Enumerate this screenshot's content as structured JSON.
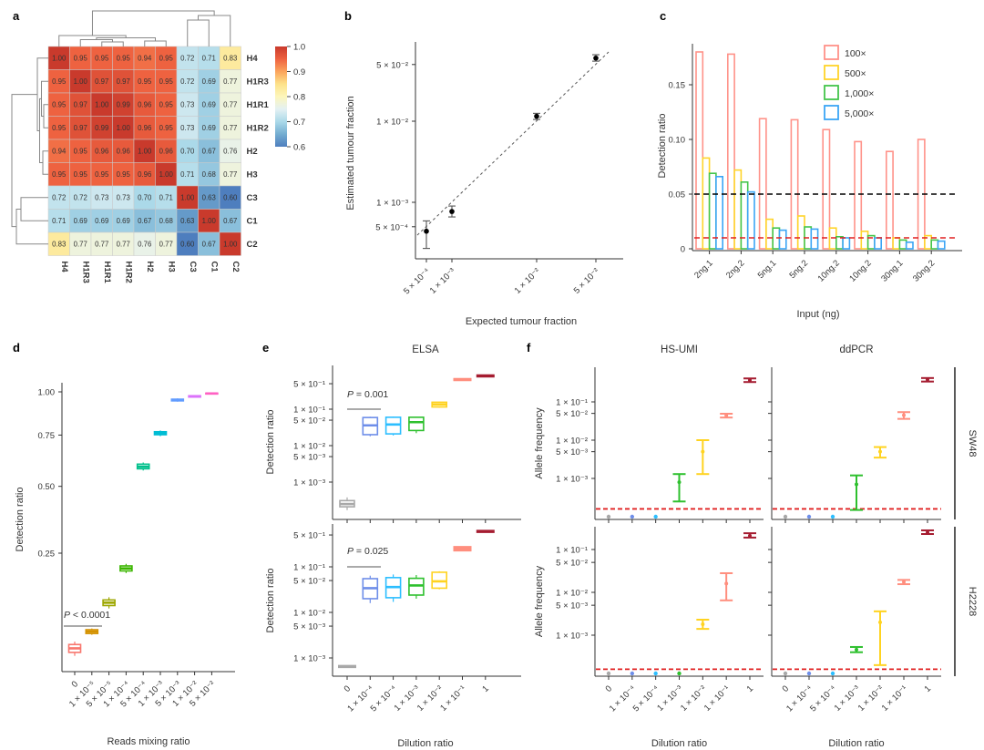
{
  "panels": {
    "a": {
      "label": "a"
    },
    "b": {
      "label": "b"
    },
    "c": {
      "label": "c"
    },
    "d": {
      "label": "d"
    },
    "e": {
      "label": "e"
    },
    "f": {
      "label": "f"
    }
  },
  "chart_data": [
    {
      "id": "a",
      "type": "heatmap",
      "labels": [
        "H4",
        "H1R3",
        "H1R1",
        "H1R2",
        "H2",
        "H3",
        "C3",
        "C1",
        "C2"
      ],
      "matrix": [
        [
          1.0,
          0.95,
          0.95,
          0.95,
          0.94,
          0.95,
          0.72,
          0.71,
          0.83
        ],
        [
          0.95,
          1.0,
          0.97,
          0.97,
          0.95,
          0.95,
          0.72,
          0.69,
          0.77
        ],
        [
          0.95,
          0.97,
          1.0,
          0.99,
          0.96,
          0.95,
          0.73,
          0.69,
          0.77
        ],
        [
          0.95,
          0.97,
          0.99,
          1.0,
          0.96,
          0.95,
          0.73,
          0.69,
          0.77
        ],
        [
          0.94,
          0.95,
          0.96,
          0.96,
          1.0,
          0.96,
          0.7,
          0.67,
          0.76
        ],
        [
          0.95,
          0.95,
          0.95,
          0.95,
          0.96,
          1.0,
          0.71,
          0.68,
          0.77
        ],
        [
          0.72,
          0.72,
          0.73,
          0.73,
          0.7,
          0.71,
          1.0,
          0.63,
          0.6
        ],
        [
          0.71,
          0.69,
          0.69,
          0.69,
          0.67,
          0.68,
          0.63,
          1.0,
          0.67
        ],
        [
          0.83,
          0.77,
          0.77,
          0.77,
          0.76,
          0.77,
          0.6,
          0.67,
          1.0
        ]
      ],
      "vmin": 0.6,
      "vmax": 1.0,
      "colorbar_ticks": [
        "1.0",
        "0.9",
        "0.8",
        "0.7",
        "0.6"
      ],
      "colormap_stops": [
        "#4E7EBE",
        "#74ADD1",
        "#ABD9E9",
        "#E4F1F3",
        "#FDF6BB",
        "#FDE28A",
        "#FBA45C",
        "#EE6240",
        "#C93A2C"
      ]
    },
    {
      "id": "b",
      "type": "scatter",
      "xlabel": "Expected tumour fraction",
      "ylabel": "Estimated tumour fraction",
      "xticks": [
        {
          "v": 0.0005,
          "label": "5 × 10⁻⁴"
        },
        {
          "v": 0.001,
          "label": "1 × 10⁻³"
        },
        {
          "v": 0.01,
          "label": "1 × 10⁻²"
        },
        {
          "v": 0.05,
          "label": "5 × 10⁻²"
        }
      ],
      "yticks": [
        {
          "v": 0.05,
          "label": "5 × 10⁻²"
        },
        {
          "v": 0.01,
          "label": "1 × 10⁻²"
        },
        {
          "v": 0.001,
          "label": "1 × 10⁻³"
        },
        {
          "v": 0.0005,
          "label": "5 × 10⁻⁴"
        }
      ],
      "points": [
        {
          "x": 0.0005,
          "y": 0.00044,
          "lo": 0.00027,
          "hi": 0.00059
        },
        {
          "x": 0.001,
          "y": 0.00077,
          "lo": 0.00066,
          "hi": 0.0009
        },
        {
          "x": 0.01,
          "y": 0.0115,
          "lo": 0.0105,
          "hi": 0.0125
        },
        {
          "x": 0.05,
          "y": 0.06,
          "lo": 0.055,
          "hi": 0.066
        }
      ],
      "identity_line": true,
      "point_color": "#000000"
    },
    {
      "id": "c",
      "type": "bar",
      "xlabel": "Input (ng)",
      "ylabel": "Detection ratio",
      "categories": [
        "2ng.1",
        "2ng.2",
        "5ng.1",
        "5ng.2",
        "10ng.2",
        "10ng.2",
        "30ng.1",
        "30ng.2"
      ],
      "series": [
        {
          "name": "100×",
          "color": "#FF9289",
          "values": [
            0.18,
            0.178,
            0.119,
            0.118,
            0.109,
            0.098,
            0.089,
            0.1
          ]
        },
        {
          "name": "500×",
          "color": "#FFD42A",
          "values": [
            0.083,
            0.072,
            0.027,
            0.03,
            0.019,
            0.016,
            0.01,
            0.012
          ]
        },
        {
          "name": "1,000×",
          "color": "#44C54B",
          "values": [
            0.069,
            0.061,
            0.019,
            0.02,
            0.011,
            0.012,
            0.008,
            0.008
          ]
        },
        {
          "name": "5,000×",
          "color": "#3BA5F5",
          "values": [
            0.066,
            0.052,
            0.017,
            0.018,
            0.01,
            0.01,
            0.006,
            0.007
          ]
        }
      ],
      "yticks": [
        {
          "v": 0,
          "label": "0"
        },
        {
          "v": 0.05,
          "label": "0.05"
        },
        {
          "v": 0.1,
          "label": "0.10"
        },
        {
          "v": 0.15,
          "label": "0.15"
        }
      ],
      "hlines": [
        {
          "y": 0.05,
          "color": "#000000"
        },
        {
          "y": 0.01,
          "color": "#E02020"
        }
      ],
      "ylim": [
        0,
        0.185
      ]
    },
    {
      "id": "d",
      "type": "box",
      "yscale": "sqrt",
      "xlabel": "Reads mixing ratio",
      "ylabel": "Detection ratio",
      "categories": [
        "0",
        "1 × 10⁻⁵",
        "5 × 10⁻⁵",
        "1 × 10⁻⁴",
        "5 × 10⁻⁴",
        "1 × 10⁻³",
        "5 × 10⁻³",
        "1 × 10⁻²",
        "5 × 10⁻²"
      ],
      "colors": [
        "#F8766D",
        "#D49200",
        "#9DA700",
        "#3BB600",
        "#00C08B",
        "#00BDD4",
        "#619CFF",
        "#DB72FB",
        "#FF61C3"
      ],
      "yticks": [
        {
          "v": 0.25,
          "label": "0.25"
        },
        {
          "v": 0.5,
          "label": "0.50"
        },
        {
          "v": 0.75,
          "label": "0.75"
        },
        {
          "v": 1.0,
          "label": "1.00"
        }
      ],
      "boxes": [
        {
          "med": 0.042,
          "q1": 0.037,
          "q3": 0.047,
          "lo": 0.033,
          "hi": 0.051
        },
        {
          "med": 0.066,
          "q1": 0.063,
          "q3": 0.069,
          "lo": 0.061,
          "hi": 0.071
        },
        {
          "med": 0.12,
          "q1": 0.114,
          "q3": 0.126,
          "lo": 0.108,
          "hi": 0.132
        },
        {
          "med": 0.205,
          "q1": 0.198,
          "q3": 0.212,
          "lo": 0.192,
          "hi": 0.218
        },
        {
          "med": 0.59,
          "q1": 0.58,
          "q3": 0.602,
          "lo": 0.572,
          "hi": 0.61
        },
        {
          "med": 0.76,
          "q1": 0.752,
          "q3": 0.768,
          "lo": 0.744,
          "hi": 0.775
        },
        {
          "med": 0.95,
          "q1": 0.945,
          "q3": 0.955,
          "lo": 0.94,
          "hi": 0.96
        },
        {
          "med": 0.972,
          "q1": 0.968,
          "q3": 0.976,
          "lo": 0.965,
          "hi": 0.979
        },
        {
          "med": 0.99,
          "q1": 0.987,
          "q3": 0.992,
          "lo": 0.985,
          "hi": 0.994
        }
      ],
      "annotation": "P < 0.0001"
    },
    {
      "id": "e",
      "type": "box",
      "yscale": "log",
      "title": "ELSA",
      "xlabel": "Dilution ratio",
      "ylabel": "Detection ratio",
      "categories": [
        "0",
        "1 × 10⁻⁴",
        "5 × 10⁻⁴",
        "1 × 10⁻³",
        "1 × 10⁻²",
        "1 × 10⁻¹",
        "1"
      ],
      "colors": [
        "#A8A8A8",
        "#6E8EE9",
        "#2CBEFF",
        "#2EC02E",
        "#FFD320",
        "#FF8E7E",
        "#A51C30"
      ],
      "yticks": [
        {
          "v": 0.5,
          "label": "5 × 10⁻¹"
        },
        {
          "v": 0.1,
          "label": "1 × 10⁻¹"
        },
        {
          "v": 0.05,
          "label": "5 × 10⁻²"
        },
        {
          "v": 0.01,
          "label": "1 × 10⁻²"
        },
        {
          "v": 0.005,
          "label": "5 × 10⁻³"
        },
        {
          "v": 0.001,
          "label": "1 × 10⁻³"
        }
      ],
      "subplots": [
        {
          "annotation": "P = 0.001",
          "boxes": [
            {
              "med": 0.00025,
              "q1": 0.00021,
              "q3": 0.00031,
              "lo": 0.00017,
              "hi": 0.00038
            },
            {
              "med": 0.036,
              "q1": 0.02,
              "q3": 0.059,
              "lo": 0.018,
              "hi": 0.062
            },
            {
              "med": 0.038,
              "q1": 0.021,
              "q3": 0.06,
              "lo": 0.019,
              "hi": 0.063
            },
            {
              "med": 0.044,
              "q1": 0.026,
              "q3": 0.06,
              "lo": 0.022,
              "hi": 0.062
            },
            {
              "med": 0.135,
              "q1": 0.115,
              "q3": 0.155,
              "lo": 0.11,
              "hi": 0.16
            },
            {
              "med": 0.65,
              "line": true
            },
            {
              "med": 0.82,
              "line": true
            }
          ]
        },
        {
          "annotation": "P = 0.025",
          "boxes": [
            {
              "med": 0.00065,
              "line": true
            },
            {
              "med": 0.034,
              "q1": 0.02,
              "q3": 0.055,
              "lo": 0.016,
              "hi": 0.064
            },
            {
              "med": 0.036,
              "q1": 0.021,
              "q3": 0.058,
              "lo": 0.017,
              "hi": 0.068
            },
            {
              "med": 0.039,
              "q1": 0.024,
              "q3": 0.056,
              "lo": 0.02,
              "hi": 0.066
            },
            {
              "med": 0.048,
              "q1": 0.034,
              "q3": 0.076,
              "lo": 0.032,
              "hi": 0.08
            },
            {
              "med": 0.25,
              "line": true,
              "thick": true
            },
            {
              "med": 0.6,
              "line": true
            }
          ]
        }
      ]
    },
    {
      "id": "f",
      "type": "errorbar-grid",
      "col_titles": [
        "HS-UMI",
        "ddPCR"
      ],
      "row_titles": [
        "SW48",
        "H2228"
      ],
      "xlabel": "Dilution ratio",
      "ylabel": "Allele frequency",
      "categories": [
        "0",
        "1 × 10⁻⁴",
        "5 × 10⁻⁴",
        "1 × 10⁻³",
        "1 × 10⁻²",
        "1 × 10⁻¹",
        "1"
      ],
      "colors": [
        "#A8A8A8",
        "#6E8EE9",
        "#2CBEFF",
        "#2EC02E",
        "#FFD320",
        "#FF8E7E",
        "#A51C30"
      ],
      "yticks": [
        {
          "v": 0.1,
          "label": "1 × 10⁻¹"
        },
        {
          "v": 0.05,
          "label": "5 × 10⁻²"
        },
        {
          "v": 0.01,
          "label": "1 × 10⁻²"
        },
        {
          "v": 0.005,
          "label": "5 × 10⁻³"
        },
        {
          "v": 0.001,
          "label": "1 × 10⁻³"
        }
      ],
      "threshold": {
        "v": 0.00016,
        "color": "#E02020"
      },
      "subplots": [
        {
          "row": "SW48",
          "col": "HS-UMI",
          "points": [
            {
              "cat": 0,
              "dot": true
            },
            {
              "cat": 1,
              "dot": true
            },
            {
              "cat": 2,
              "dot": true
            },
            {
              "cat": 3,
              "lo": 0.00025,
              "mid": 0.0008,
              "hi": 0.0013
            },
            {
              "cat": 4,
              "lo": 0.0013,
              "mid": 0.005,
              "hi": 0.01
            },
            {
              "cat": 5,
              "lo": 0.039,
              "mid": 0.044,
              "hi": 0.049
            },
            {
              "cat": 6,
              "lo": 0.33,
              "mid": 0.37,
              "hi": 0.41
            }
          ]
        },
        {
          "row": "SW48",
          "col": "ddPCR",
          "points": [
            {
              "cat": 0,
              "dot": true
            },
            {
              "cat": 1,
              "dot": true
            },
            {
              "cat": 2,
              "dot": true
            },
            {
              "cat": 3,
              "lo": 0.00015,
              "mid": 0.0007,
              "hi": 0.0012
            },
            {
              "cat": 4,
              "lo": 0.0035,
              "mid": 0.005,
              "hi": 0.0066
            },
            {
              "cat": 5,
              "lo": 0.036,
              "mid": 0.045,
              "hi": 0.054
            },
            {
              "cat": 6,
              "lo": 0.34,
              "mid": 0.38,
              "hi": 0.42
            }
          ]
        },
        {
          "row": "H2228",
          "col": "HS-UMI",
          "points": [
            {
              "cat": 0,
              "dot": true
            },
            {
              "cat": 1,
              "dot": true
            },
            {
              "cat": 2,
              "dot": true
            },
            {
              "cat": 3,
              "dot": true
            },
            {
              "cat": 4,
              "lo": 0.0014,
              "mid": 0.0018,
              "hi": 0.0023
            },
            {
              "cat": 5,
              "lo": 0.0065,
              "mid": 0.016,
              "hi": 0.028
            },
            {
              "cat": 6,
              "lo": 0.19,
              "mid": 0.21,
              "hi": 0.24
            }
          ]
        },
        {
          "row": "H2228",
          "col": "ddPCR",
          "points": [
            {
              "cat": 0,
              "dot": true
            },
            {
              "cat": 1,
              "dot": true
            },
            {
              "cat": 2,
              "dot": true
            },
            {
              "cat": 3,
              "lo": 0.0004,
              "mid": 0.00046,
              "hi": 0.00053
            },
            {
              "cat": 4,
              "lo": 0.0002,
              "mid": 0.002,
              "hi": 0.0036
            },
            {
              "cat": 5,
              "lo": 0.0155,
              "mid": 0.0175,
              "hi": 0.0195
            },
            {
              "cat": 6,
              "lo": 0.23,
              "mid": 0.25,
              "hi": 0.28
            }
          ]
        }
      ]
    }
  ]
}
